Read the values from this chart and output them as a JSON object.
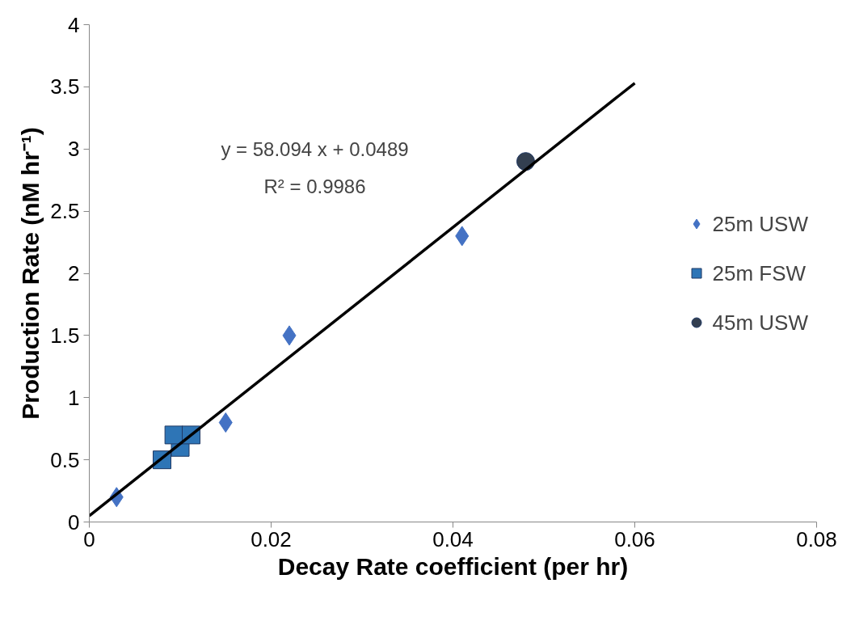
{
  "chart_data": {
    "type": "scatter",
    "xlabel": "Decay Rate coefficient (per hr)",
    "ylabel": "Production Rate (nM hr⁻¹)",
    "xlim": [
      0,
      0.08
    ],
    "xticks": [
      0,
      0.02,
      0.04,
      0.06,
      0.08
    ],
    "ylim": [
      0,
      4
    ],
    "yticks": [
      0,
      0.5,
      1,
      1.5,
      2,
      2.5,
      3,
      3.5,
      4
    ],
    "grid": false,
    "legend": "right",
    "annotations": [
      "y = 58.094 x + 0.0489",
      "R² = 0.9986"
    ],
    "series": [
      {
        "name": "25m USW",
        "color": "#4472c4",
        "marker": "diamond",
        "x": [
          0.003,
          0.015,
          0.022,
          0.041
        ],
        "values": [
          0.2,
          0.8,
          1.5,
          2.3
        ]
      },
      {
        "name": "25m FSW",
        "color": "#2e75b6",
        "marker": "square",
        "x": [
          0.008,
          0.01,
          0.0093,
          0.0112
        ],
        "values": [
          0.5,
          0.6,
          0.7,
          0.7
        ]
      },
      {
        "name": "45m USW",
        "color": "#333f50",
        "marker": "circle",
        "x": [
          0.048
        ],
        "values": [
          2.9
        ]
      },
      {
        "type": "line",
        "color": "#000000",
        "marker": "none",
        "x": [
          0,
          0.06
        ],
        "values": [
          0.05,
          3.53
        ]
      }
    ]
  }
}
